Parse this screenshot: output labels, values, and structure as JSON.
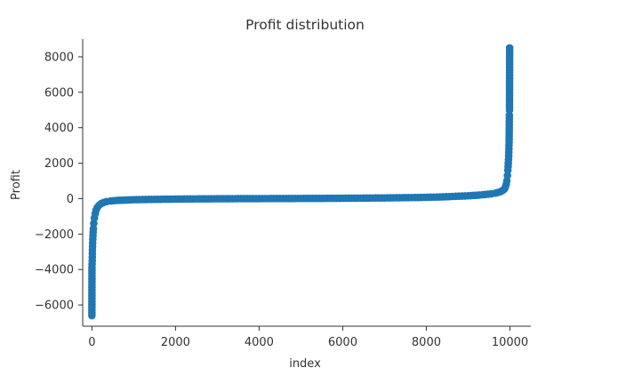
{
  "chart_data": {
    "type": "scatter",
    "title": "Profit distribution",
    "xlabel": "index",
    "ylabel": "Profit",
    "xlim": [
      -220,
      10500
    ],
    "ylim": [
      -7200,
      9000
    ],
    "grid": false,
    "xticks": [
      0,
      2000,
      4000,
      6000,
      8000,
      10000
    ],
    "yticks": [
      -6000,
      -4000,
      -2000,
      0,
      2000,
      4000,
      6000,
      8000
    ],
    "xtick_labels": [
      "0",
      "2000",
      "4000",
      "6000",
      "8000",
      "10000"
    ],
    "ytick_labels": [
      "−6000",
      "−4000",
      "−2000",
      "0",
      "2000",
      "4000",
      "6000",
      "8000"
    ],
    "marker_color": "#1f77b4",
    "axis_color": "#333333",
    "series": [
      {
        "x": [
          0,
          2,
          5,
          8,
          12,
          18,
          25,
          35,
          45,
          60,
          80,
          100,
          130,
          170,
          220,
          280,
          350,
          450,
          600,
          800,
          1000,
          1500,
          2000,
          2500,
          3000,
          3500,
          4000,
          4500,
          5000,
          5500,
          6000,
          6500,
          7000,
          7500,
          7800,
          8100,
          8400,
          8700,
          9000,
          9200,
          9400,
          9550,
          9650,
          9700,
          9760,
          9800,
          9840,
          9870,
          9890,
          9910,
          9925,
          9940,
          9950,
          9960,
          9970,
          9975,
          9980,
          9983,
          9986,
          9989,
          9991,
          9993
        ],
        "y": [
          -6600,
          -3900,
          -3700,
          -3500,
          -2900,
          -2500,
          -2100,
          -1700,
          -1400,
          -1100,
          -850,
          -650,
          -500,
          -380,
          -280,
          -220,
          -170,
          -130,
          -100,
          -80,
          -60,
          -40,
          -25,
          -15,
          -8,
          -2,
          2,
          6,
          10,
          15,
          22,
          30,
          40,
          55,
          65,
          80,
          100,
          130,
          160,
          190,
          230,
          270,
          310,
          340,
          380,
          430,
          480,
          550,
          650,
          800,
          1000,
          1300,
          1600,
          2000,
          2400,
          2800,
          3200,
          4000,
          4700,
          5000,
          6800,
          8500
        ]
      }
    ]
  }
}
